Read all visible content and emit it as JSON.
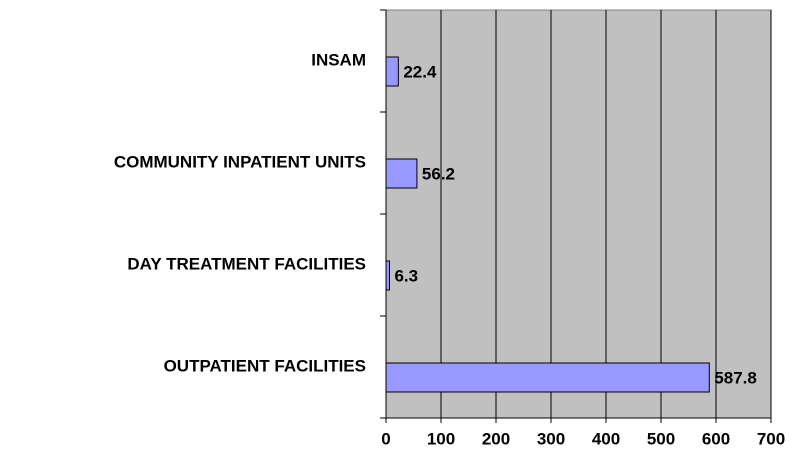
{
  "chart_data": {
    "type": "bar",
    "orientation": "horizontal",
    "categories": [
      "INSAM",
      "COMMUNITY INPATIENT UNITS",
      "DAY TREATMENT FACILITIES",
      "OUTPATIENT FACILITIES"
    ],
    "values": [
      22.4,
      56.2,
      6.3,
      587.8
    ],
    "color": "#9999ff",
    "xlim": [
      0,
      700
    ],
    "xticks": [
      0,
      100,
      200,
      300,
      400,
      500,
      600,
      700
    ],
    "grid": true
  }
}
